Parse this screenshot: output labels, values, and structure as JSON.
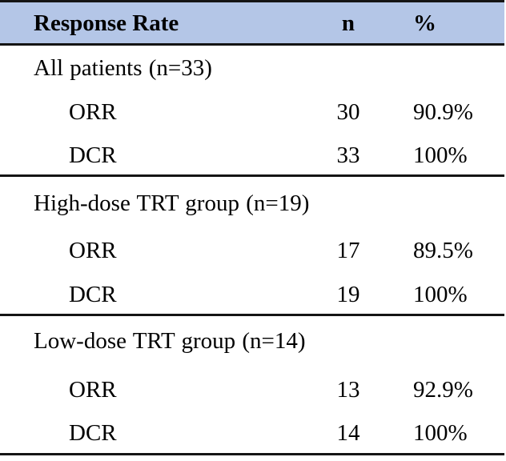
{
  "table": {
    "header": {
      "response_rate": "Response Rate",
      "n": "n",
      "percent": "%"
    },
    "sections": [
      {
        "label": "All patients (n=33)",
        "rows": [
          {
            "label": "ORR",
            "n": "30",
            "percent": "90.9%"
          },
          {
            "label": "DCR",
            "n": "33",
            "percent": "100%"
          }
        ]
      },
      {
        "label": "High-dose TRT group (n=19)",
        "rows": [
          {
            "label": "ORR",
            "n": "17",
            "percent": "89.5%"
          },
          {
            "label": "DCR",
            "n": "19",
            "percent": "100%"
          }
        ]
      },
      {
        "label": "Low-dose TRT group (n=14)",
        "rows": [
          {
            "label": "ORR",
            "n": "13",
            "percent": "92.9%"
          },
          {
            "label": "DCR",
            "n": "14",
            "percent": "100%"
          }
        ]
      }
    ]
  },
  "colors": {
    "header_background": "#b4c6e7",
    "rule": "#141414",
    "text": "#000000",
    "page_background": "#ffffff"
  },
  "chart_data": {
    "type": "table",
    "title": "Response Rate",
    "columns": [
      "Response Rate",
      "n",
      "%"
    ],
    "rows": [
      [
        "All patients (n=33)",
        "",
        ""
      ],
      [
        "ORR",
        "30",
        "90.9%"
      ],
      [
        "DCR",
        "33",
        "100%"
      ],
      [
        "High-dose TRT group (n=19)",
        "",
        ""
      ],
      [
        "ORR",
        "17",
        "89.5%"
      ],
      [
        "DCR",
        "19",
        "100%"
      ],
      [
        "Low-dose TRT group (n=14)",
        "",
        ""
      ],
      [
        "ORR",
        "13",
        "92.9%"
      ],
      [
        "DCR",
        "14",
        "100%"
      ]
    ]
  }
}
